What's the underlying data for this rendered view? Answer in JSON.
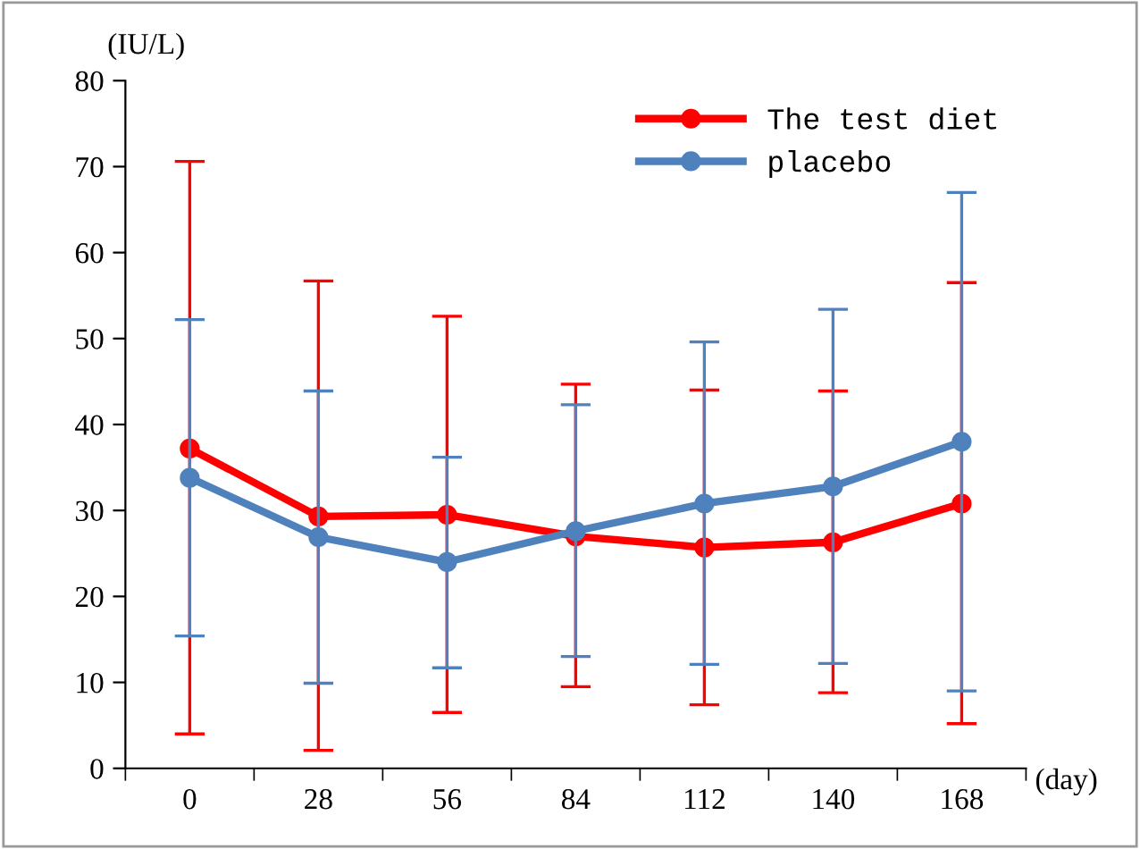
{
  "chart_data": {
    "type": "line",
    "ylabel": "(IU/L)",
    "xlabel": "(day)",
    "categories": [
      "0",
      "28",
      "56",
      "84",
      "112",
      "140",
      "168"
    ],
    "series": [
      {
        "name": "The test diet",
        "color": "#ff0000",
        "values": [
          37.2,
          29.3,
          29.5,
          27.0,
          25.7,
          26.3,
          30.8
        ],
        "errors": [
          [
            4.0,
            70.6
          ],
          [
            2.1,
            56.7
          ],
          [
            6.5,
            52.6
          ],
          [
            9.5,
            44.7
          ],
          [
            7.4,
            44.0
          ],
          [
            8.8,
            43.9
          ],
          [
            5.2,
            56.5
          ]
        ]
      },
      {
        "name": "placebo",
        "color": "#4f81bd",
        "values": [
          33.8,
          26.9,
          24.0,
          27.6,
          30.8,
          32.8,
          38.0
        ],
        "errors": [
          [
            15.4,
            52.2
          ],
          [
            9.9,
            43.9
          ],
          [
            11.7,
            36.2
          ],
          [
            13.0,
            42.3
          ],
          [
            12.1,
            49.6
          ],
          [
            12.2,
            53.4
          ],
          [
            9.0,
            67.0
          ]
        ]
      }
    ],
    "ylim": [
      0,
      80
    ],
    "yticks": [
      0,
      10,
      20,
      30,
      40,
      50,
      60,
      70,
      80
    ],
    "grid": false,
    "legend": "top right",
    "marker": "circle",
    "line_style": "solid"
  }
}
